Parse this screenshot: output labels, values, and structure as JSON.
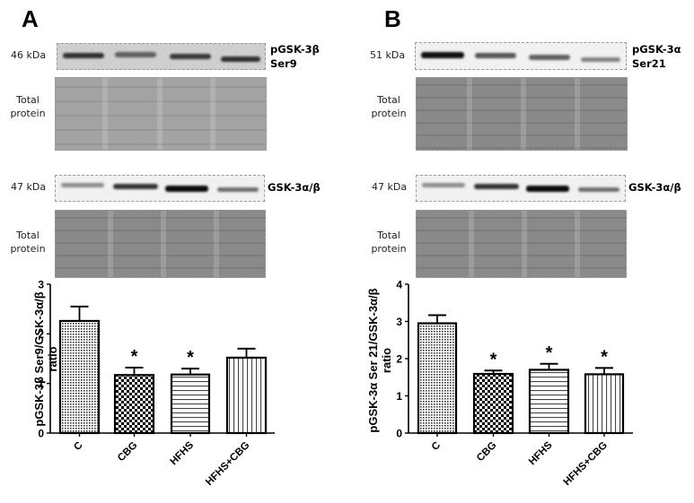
{
  "panels": [
    {
      "letter": "A",
      "top_blot": {
        "kda": "46 kDa",
        "label_line1": "pGSK-3β",
        "label_line2": "Ser9",
        "band_opacity": [
          0.85,
          0.6,
          0.8,
          0.85
        ]
      },
      "top_total": {
        "label_line1": "Total",
        "label_line2": "protein"
      },
      "bottom_blot": {
        "kda": "47 kDa",
        "label_line1": "GSK-3α/β",
        "band_opacity": [
          0.45,
          0.85,
          1.0,
          0.6
        ]
      },
      "bottom_total": {
        "label_line1": "Total",
        "label_line2": "protein"
      }
    },
    {
      "letter": "B",
      "top_blot": {
        "kda": "51 kDa",
        "label_line1": "pGSK-3α",
        "label_line2": "Ser21",
        "band_opacity": [
          1.0,
          0.7,
          0.65,
          0.5
        ]
      },
      "top_total": {
        "label_line1": "Total",
        "label_line2": "protein"
      },
      "bottom_blot": {
        "kda": "47 kDa",
        "label_line1": "GSK-3α/β",
        "band_opacity": [
          0.45,
          0.85,
          1.0,
          0.6
        ]
      },
      "bottom_total": {
        "label_line1": "Total",
        "label_line2": "protein"
      }
    }
  ],
  "chart_data": [
    {
      "type": "bar",
      "panel": "A",
      "title": "",
      "categories": [
        "C",
        "CBG",
        "HFHS",
        "HFHS+CBG"
      ],
      "values": [
        2.26,
        1.17,
        1.18,
        1.52
      ],
      "error_upper": [
        0.29,
        0.15,
        0.12,
        0.18
      ],
      "significance": [
        "",
        "*",
        "*",
        ""
      ],
      "patterns": [
        "fine-dots",
        "checker",
        "horizontal-lines",
        "vertical-lines"
      ],
      "xlabel": "",
      "ylabel_line1": "pGSK-3β Ser9/GSK-3α/β",
      "ylabel_line2": "ratio",
      "ylim": [
        0,
        3
      ],
      "yticks": [
        "0",
        "1",
        "2",
        "3"
      ],
      "grid": false,
      "legend": "none"
    },
    {
      "type": "bar",
      "panel": "B",
      "title": "",
      "categories": [
        "C",
        "CBG",
        "HFHS",
        "HFHS+CBG"
      ],
      "values": [
        2.95,
        1.59,
        1.7,
        1.58
      ],
      "error_upper": [
        0.22,
        0.09,
        0.16,
        0.17
      ],
      "significance": [
        "",
        "*",
        "*",
        "*"
      ],
      "patterns": [
        "fine-dots",
        "checker",
        "horizontal-lines",
        "vertical-lines"
      ],
      "xlabel": "",
      "ylabel_line1": "pGSK-3α Ser 21/GSK-3α/β",
      "ylabel_line2": "ratio",
      "ylim": [
        0,
        4
      ],
      "yticks": [
        "0",
        "1",
        "2",
        "3",
        "4"
      ],
      "grid": false,
      "legend": "none"
    }
  ]
}
